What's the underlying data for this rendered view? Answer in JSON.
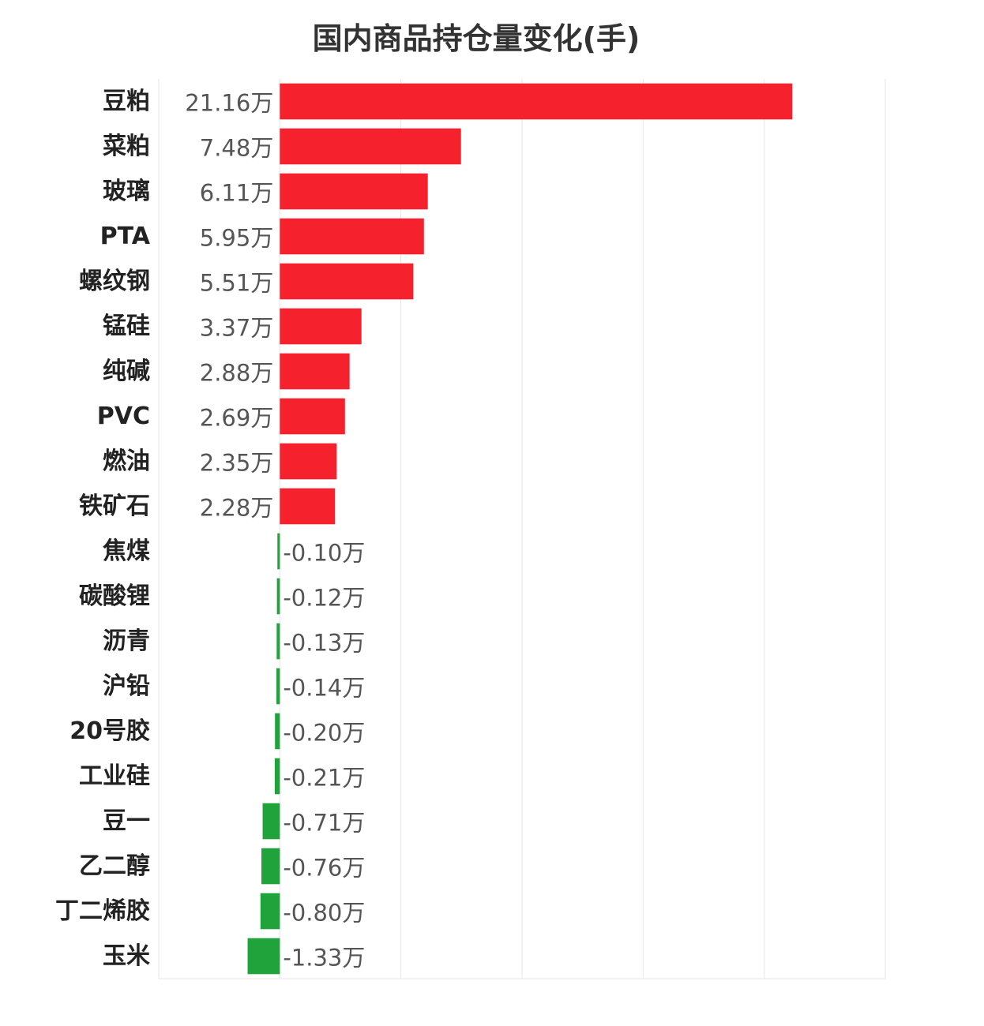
{
  "chart_data": {
    "type": "bar",
    "orientation": "horizontal",
    "title": "国内商品持仓量变化(手)",
    "categories": [
      "豆粕",
      "菜粕",
      "玻璃",
      "PTA",
      "螺纹钢",
      "锰硅",
      "纯碱",
      "PVC",
      "燃油",
      "铁矿石",
      "焦煤",
      "碳酸锂",
      "沥青",
      "沪铅",
      "20号胶",
      "工业硅",
      "豆一",
      "乙二醇",
      "丁二烯胶",
      "玉米"
    ],
    "values": [
      211600,
      74800,
      61100,
      59500,
      55100,
      33700,
      28800,
      26900,
      23500,
      22800,
      -1000,
      -1200,
      -1300,
      -1400,
      -2000,
      -2100,
      -7100,
      -7600,
      -8000,
      -13300
    ],
    "value_labels": [
      "21.16万",
      "7.48万",
      "6.11万",
      "5.95万",
      "5.51万",
      "3.37万",
      "2.88万",
      "2.69万",
      "2.35万",
      "2.28万",
      "-0.10万",
      "-0.12万",
      "-0.13万",
      "-0.14万",
      "-0.20万",
      "-0.21万",
      "-0.71万",
      "-0.76万",
      "-0.80万",
      "-1.33万"
    ],
    "xlim": [
      -50000,
      250000
    ],
    "grid": true,
    "colors": {
      "positive": "#f5222d",
      "negative": "#1fa33a",
      "grid": "#e6e6e6"
    }
  }
}
